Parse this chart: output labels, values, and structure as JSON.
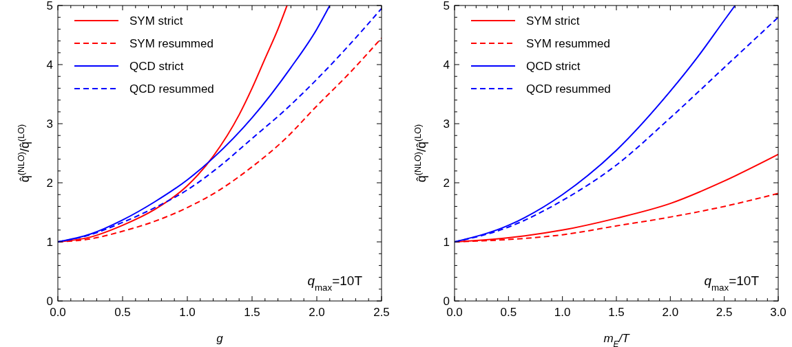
{
  "chart_data": [
    {
      "type": "line",
      "xlabel": "g",
      "ylabel": "q̂$^{(NLO)}$/q̂$^{(LO)}$",
      "annotations": [
        "q$_{max}$=10T"
      ],
      "legend": "top left",
      "grid": false,
      "xlim": [
        0,
        2.5
      ],
      "ylim": [
        0,
        5
      ],
      "xticks": [
        {
          "value": 0,
          "label": "0.0"
        },
        {
          "value": 0.1,
          "label": null
        },
        {
          "value": 0.2,
          "label": null
        },
        {
          "value": 0.3,
          "label": null
        },
        {
          "value": 0.4,
          "label": null
        },
        {
          "value": 0.5,
          "label": "0.5"
        },
        {
          "value": 0.6,
          "label": null
        },
        {
          "value": 0.7,
          "label": null
        },
        {
          "value": 0.8,
          "label": null
        },
        {
          "value": 0.9,
          "label": null
        },
        {
          "value": 1,
          "label": "1.0"
        },
        {
          "value": 1.1,
          "label": null
        },
        {
          "value": 1.2,
          "label": null
        },
        {
          "value": 1.3,
          "label": null
        },
        {
          "value": 1.4,
          "label": null
        },
        {
          "value": 1.5,
          "label": "1.5"
        },
        {
          "value": 1.6,
          "label": null
        },
        {
          "value": 1.7,
          "label": null
        },
        {
          "value": 1.8,
          "label": null
        },
        {
          "value": 1.9,
          "label": null
        },
        {
          "value": 2,
          "label": "2.0"
        },
        {
          "value": 2.1,
          "label": null
        },
        {
          "value": 2.2,
          "label": null
        },
        {
          "value": 2.3,
          "label": null
        },
        {
          "value": 2.4,
          "label": null
        },
        {
          "value": 2.5,
          "label": "2.5"
        }
      ],
      "yticks": [
        0,
        {
          "value": 0.2,
          "label": null
        },
        {
          "value": 0.4,
          "label": null
        },
        {
          "value": 0.6,
          "label": null
        },
        {
          "value": 0.8,
          "label": null
        },
        1,
        {
          "value": 1.2,
          "label": null
        },
        {
          "value": 1.4,
          "label": null
        },
        {
          "value": 1.6,
          "label": null
        },
        {
          "value": 1.8,
          "label": null
        },
        2,
        {
          "value": 2.2,
          "label": null
        },
        {
          "value": 2.4,
          "label": null
        },
        {
          "value": 2.6,
          "label": null
        },
        {
          "value": 2.8,
          "label": null
        },
        3,
        {
          "value": 3.2,
          "label": null
        },
        {
          "value": 3.4,
          "label": null
        },
        {
          "value": 3.6,
          "label": null
        },
        {
          "value": 3.8,
          "label": null
        },
        4,
        {
          "value": 4.2,
          "label": null
        },
        {
          "value": 4.4,
          "label": null
        },
        {
          "value": 4.6,
          "label": null
        },
        {
          "value": 4.8,
          "label": null
        },
        5
      ],
      "series": [
        {
          "name": "SYM strict",
          "color": "#ff0000",
          "line_style": "solid",
          "x": [
            0,
            0.25,
            0.5,
            0.75,
            1,
            1.2,
            1.4,
            1.5,
            1.6,
            1.7,
            1.77
          ],
          "values": [
            1,
            1.08,
            1.28,
            1.55,
            1.95,
            2.45,
            3.15,
            3.6,
            4.1,
            4.6,
            5
          ]
        },
        {
          "name": "SYM resummed",
          "color": "#ff0000",
          "line_style": "dashed",
          "x": [
            0,
            0.25,
            0.5,
            0.75,
            1,
            1.25,
            1.5,
            1.75,
            2,
            2.25,
            2.5
          ],
          "values": [
            1,
            1.05,
            1.18,
            1.35,
            1.58,
            1.88,
            2.27,
            2.73,
            3.3,
            3.85,
            4.45
          ]
        },
        {
          "name": "QCD strict",
          "color": "#0000ff",
          "line_style": "solid",
          "x": [
            0,
            0.25,
            0.5,
            0.75,
            1,
            1.2,
            1.5,
            1.8,
            2,
            2.1
          ],
          "values": [
            1,
            1.13,
            1.37,
            1.68,
            2.05,
            2.42,
            3.1,
            3.95,
            4.6,
            5
          ]
        },
        {
          "name": "QCD resummed",
          "color": "#0000ff",
          "line_style": "dashed",
          "x": [
            0,
            0.25,
            0.5,
            0.75,
            1,
            1.25,
            1.5,
            1.75,
            2,
            2.25,
            2.5
          ],
          "values": [
            1,
            1.12,
            1.33,
            1.58,
            1.88,
            2.28,
            2.75,
            3.22,
            3.75,
            4.33,
            4.95
          ]
        }
      ]
    },
    {
      "type": "line",
      "xlabel": "m$_{E}$/T",
      "ylabel": "q̂$^{(NLO)}$/q̂$^{(LO)}$",
      "annotations": [
        "q$_{max}$=10T"
      ],
      "legend": "top left",
      "grid": false,
      "xlim": [
        0,
        3
      ],
      "ylim": [
        0,
        5
      ],
      "xticks": [
        {
          "value": 0,
          "label": "0.0"
        },
        {
          "value": 0.1,
          "label": null
        },
        {
          "value": 0.2,
          "label": null
        },
        {
          "value": 0.3,
          "label": null
        },
        {
          "value": 0.4,
          "label": null
        },
        {
          "value": 0.5,
          "label": "0.5"
        },
        {
          "value": 0.6,
          "label": null
        },
        {
          "value": 0.7,
          "label": null
        },
        {
          "value": 0.8,
          "label": null
        },
        {
          "value": 0.9,
          "label": null
        },
        {
          "value": 1,
          "label": "1.0"
        },
        {
          "value": 1.1,
          "label": null
        },
        {
          "value": 1.2,
          "label": null
        },
        {
          "value": 1.3,
          "label": null
        },
        {
          "value": 1.4,
          "label": null
        },
        {
          "value": 1.5,
          "label": "1.5"
        },
        {
          "value": 1.6,
          "label": null
        },
        {
          "value": 1.7,
          "label": null
        },
        {
          "value": 1.8,
          "label": null
        },
        {
          "value": 1.9,
          "label": null
        },
        {
          "value": 2,
          "label": "2.0"
        },
        {
          "value": 2.1,
          "label": null
        },
        {
          "value": 2.2,
          "label": null
        },
        {
          "value": 2.3,
          "label": null
        },
        {
          "value": 2.4,
          "label": null
        },
        {
          "value": 2.5,
          "label": "2.5"
        },
        {
          "value": 2.6,
          "label": null
        },
        {
          "value": 2.7,
          "label": null
        },
        {
          "value": 2.8,
          "label": null
        },
        {
          "value": 2.9,
          "label": null
        },
        {
          "value": 3,
          "label": "3.0"
        }
      ],
      "yticks": [
        0,
        {
          "value": 0.2,
          "label": null
        },
        {
          "value": 0.4,
          "label": null
        },
        {
          "value": 0.6,
          "label": null
        },
        {
          "value": 0.8,
          "label": null
        },
        1,
        {
          "value": 1.2,
          "label": null
        },
        {
          "value": 1.4,
          "label": null
        },
        {
          "value": 1.6,
          "label": null
        },
        {
          "value": 1.8,
          "label": null
        },
        2,
        {
          "value": 2.2,
          "label": null
        },
        {
          "value": 2.4,
          "label": null
        },
        {
          "value": 2.6,
          "label": null
        },
        {
          "value": 2.8,
          "label": null
        },
        3,
        {
          "value": 3.2,
          "label": null
        },
        {
          "value": 3.4,
          "label": null
        },
        {
          "value": 3.6,
          "label": null
        },
        {
          "value": 3.8,
          "label": null
        },
        4,
        {
          "value": 4.2,
          "label": null
        },
        {
          "value": 4.4,
          "label": null
        },
        {
          "value": 4.6,
          "label": null
        },
        {
          "value": 4.8,
          "label": null
        },
        5
      ],
      "series": [
        {
          "name": "SYM strict",
          "color": "#ff0000",
          "line_style": "solid",
          "x": [
            0,
            0.5,
            1,
            1.5,
            2,
            2.5,
            3
          ],
          "values": [
            1,
            1.07,
            1.2,
            1.4,
            1.65,
            2.03,
            2.48
          ]
        },
        {
          "name": "SYM resummed",
          "color": "#ff0000",
          "line_style": "dashed",
          "x": [
            0,
            0.5,
            1,
            1.5,
            2,
            2.5,
            3
          ],
          "values": [
            1,
            1.04,
            1.12,
            1.27,
            1.42,
            1.6,
            1.82
          ]
        },
        {
          "name": "QCD strict",
          "color": "#0000ff",
          "line_style": "solid",
          "x": [
            0,
            0.5,
            1,
            1.5,
            2,
            2.25,
            2.5,
            2.6
          ],
          "values": [
            1,
            1.28,
            1.8,
            2.55,
            3.55,
            4.12,
            4.75,
            5
          ]
        },
        {
          "name": "QCD resummed",
          "color": "#0000ff",
          "line_style": "dashed",
          "x": [
            0,
            0.5,
            1,
            1.5,
            2,
            2.5,
            3
          ],
          "values": [
            1,
            1.25,
            1.7,
            2.3,
            3.1,
            3.95,
            4.8
          ]
        }
      ]
    }
  ]
}
